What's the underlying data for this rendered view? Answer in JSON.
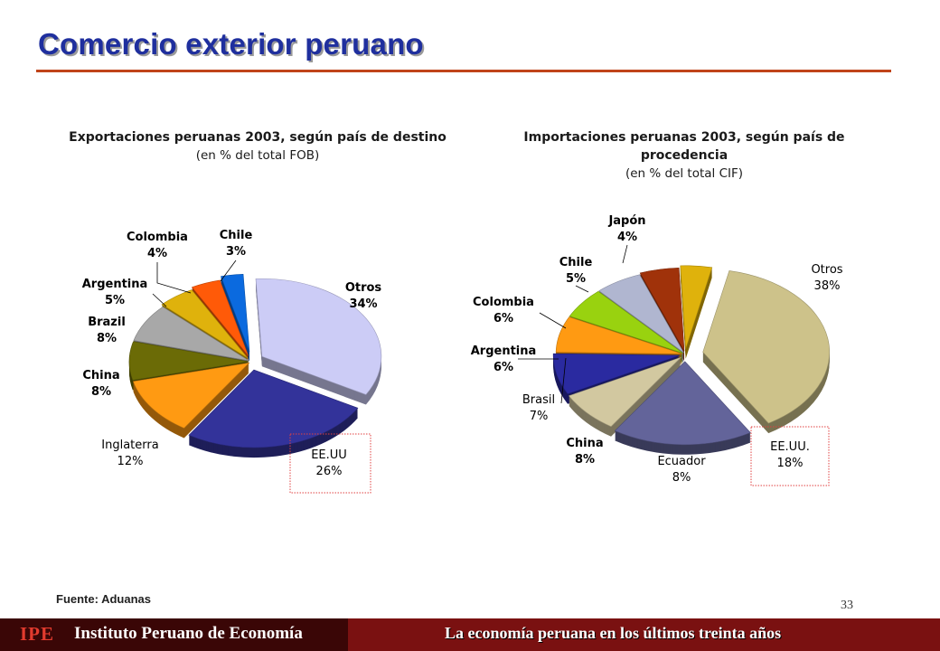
{
  "title": "Comercio exterior peruano",
  "export_chart": {
    "title": "Exportaciones peruanas 2003, según país de destino",
    "subtitle": "(en % del total FOB)"
  },
  "import_chart": {
    "title": "Importaciones peruanas 2003, según país de procedencia",
    "subtitle": "(en % del total CIF)"
  },
  "chart_data": [
    {
      "type": "pie",
      "title": "Exportaciones peruanas 2003, según país de destino",
      "subtitle": "(en % del total FOB)",
      "categories": [
        "Otros",
        "EE.UU",
        "Inglaterra",
        "China",
        "Brazil",
        "Argentina",
        "Colombia",
        "Chile"
      ],
      "values": [
        34,
        26,
        12,
        8,
        8,
        5,
        4,
        3
      ],
      "labels": [
        "34%",
        "26%",
        "12%",
        "8%",
        "8%",
        "5%",
        "4%",
        "3%"
      ],
      "colors": [
        "#ccccf6",
        "#33339a",
        "#ff9a12",
        "#6b6b06",
        "#a8a8a8",
        "#dfb20c",
        "#ff5a08",
        "#0b6adf"
      ],
      "highlighted": "EE.UU"
    },
    {
      "type": "pie",
      "title": "Importaciones peruanas 2003, según país de procedencia",
      "subtitle": "(en % del total CIF)",
      "categories": [
        "Otros",
        "EE.UU.",
        "Ecuador",
        "China",
        "Brasil",
        "Argentina",
        "Colombia",
        "Chile",
        "Japón"
      ],
      "values": [
        38,
        18,
        8,
        8,
        7,
        6,
        6,
        5,
        4
      ],
      "labels": [
        "38%",
        "18%",
        "8%",
        "8%",
        "7%",
        "6%",
        "6%",
        "5%",
        "4%"
      ],
      "colors": [
        "#cdc28a",
        "#63649a",
        "#d2c8a0",
        "#2a2aa0",
        "#ff9a12",
        "#99d20f",
        "#b0b6d0",
        "#a0320a",
        "#dfb20c"
      ],
      "highlighted": "EE.UU."
    }
  ],
  "source": "Fuente: Aduanas",
  "page_number": "33",
  "footer": {
    "logo": "IPE",
    "org_name": "Instituto Peruano de Economía",
    "tagline": "La economía peruana en los últimos treinta años"
  }
}
